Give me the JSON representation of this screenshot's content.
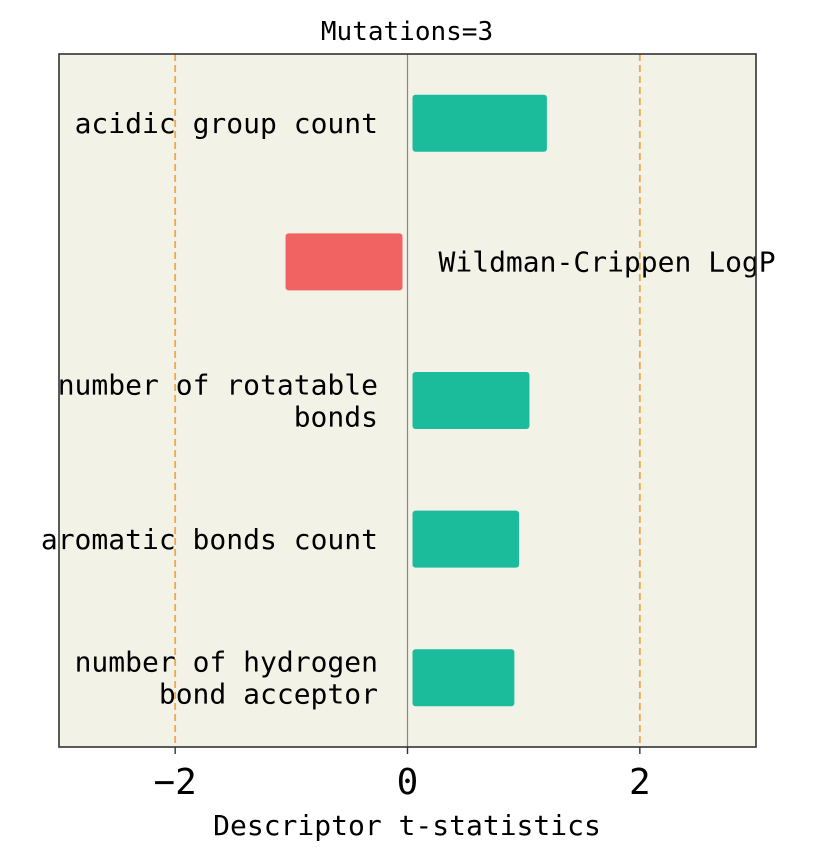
{
  "chart_data": {
    "type": "bar",
    "orientation": "horizontal",
    "title": "Mutations=3",
    "xlabel": "Descriptor t-statistics",
    "xlim": [
      -3,
      3
    ],
    "xticks": [
      -2,
      0,
      2
    ],
    "xtick_labels": [
      "−2",
      "0",
      "2"
    ],
    "threshold_lines": [
      -2,
      2
    ],
    "zero_line": 0,
    "grid": false,
    "bars": [
      {
        "label": "acidic group count",
        "label_lines": [
          "acidic group count"
        ],
        "value": 1.2
      },
      {
        "label": "Wildman-Crippen LogP",
        "label_lines": [
          "Wildman-Crippen LogP"
        ],
        "value": -1.05
      },
      {
        "label": "number of rotatable bonds",
        "label_lines": [
          "number of rotatable",
          "bonds"
        ],
        "value": 1.05
      },
      {
        "label": "aromatic bonds count",
        "label_lines": [
          "aromatic bonds count"
        ],
        "value": 0.96
      },
      {
        "label": "number of hydrogen bond acceptor",
        "label_lines": [
          "number of hydrogen",
          "bond acceptor"
        ],
        "value": 0.92
      }
    ],
    "colors": {
      "positive": "#1abc9c",
      "negative": "#f16262",
      "plot_background": "#f3f2e7",
      "threshold": "#f5a742",
      "zero_line": "#888888",
      "frame": "#333333"
    }
  }
}
